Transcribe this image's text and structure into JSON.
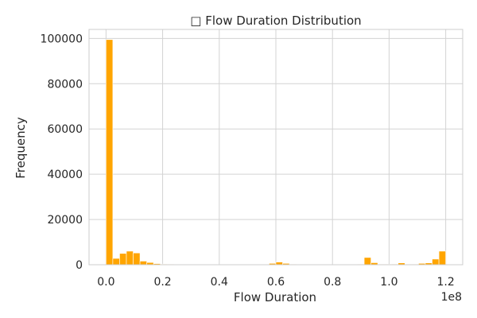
{
  "chart_data": {
    "type": "bar",
    "title": "□ Flow Duration Distribution",
    "xlabel": "Flow Duration",
    "ylabel": "Frequency",
    "x_offset_label": "1e8",
    "xlim": [
      -0.06,
      1.26
    ],
    "ylim": [
      0,
      104000
    ],
    "x_ticks": [
      0.0,
      0.2,
      0.4,
      0.6,
      0.8,
      1.0,
      1.2
    ],
    "x_tick_labels": [
      "0.0",
      "0.2",
      "0.4",
      "0.6",
      "0.8",
      "1.0",
      "1.2"
    ],
    "y_ticks": [
      0,
      20000,
      40000,
      60000,
      80000,
      100000
    ],
    "y_tick_labels": [
      "0",
      "20000",
      "40000",
      "60000",
      "80000",
      "100000"
    ],
    "grid": true,
    "color": "#ffa500",
    "bin_edges": [
      0.0,
      0.024,
      0.048,
      0.072,
      0.096,
      0.12,
      0.144,
      0.168,
      0.192,
      0.216,
      0.24,
      0.264,
      0.288,
      0.312,
      0.336,
      0.36,
      0.384,
      0.408,
      0.432,
      0.456,
      0.48,
      0.504,
      0.528,
      0.552,
      0.576,
      0.6,
      0.624,
      0.648,
      0.672,
      0.696,
      0.72,
      0.744,
      0.768,
      0.792,
      0.816,
      0.84,
      0.864,
      0.888,
      0.912,
      0.936,
      0.96,
      0.984,
      1.008,
      1.032,
      1.056,
      1.08,
      1.104,
      1.128,
      1.152,
      1.176,
      1.2
    ],
    "values": [
      99500,
      2800,
      5000,
      6000,
      5200,
      1600,
      1000,
      500,
      300,
      200,
      150,
      100,
      100,
      100,
      100,
      100,
      100,
      100,
      100,
      100,
      100,
      100,
      100,
      100,
      600,
      1200,
      600,
      200,
      100,
      100,
      100,
      100,
      100,
      100,
      100,
      100,
      100,
      200,
      3200,
      900,
      200,
      200,
      300,
      800,
      200,
      200,
      600,
      800,
      2500,
      6000
    ]
  }
}
